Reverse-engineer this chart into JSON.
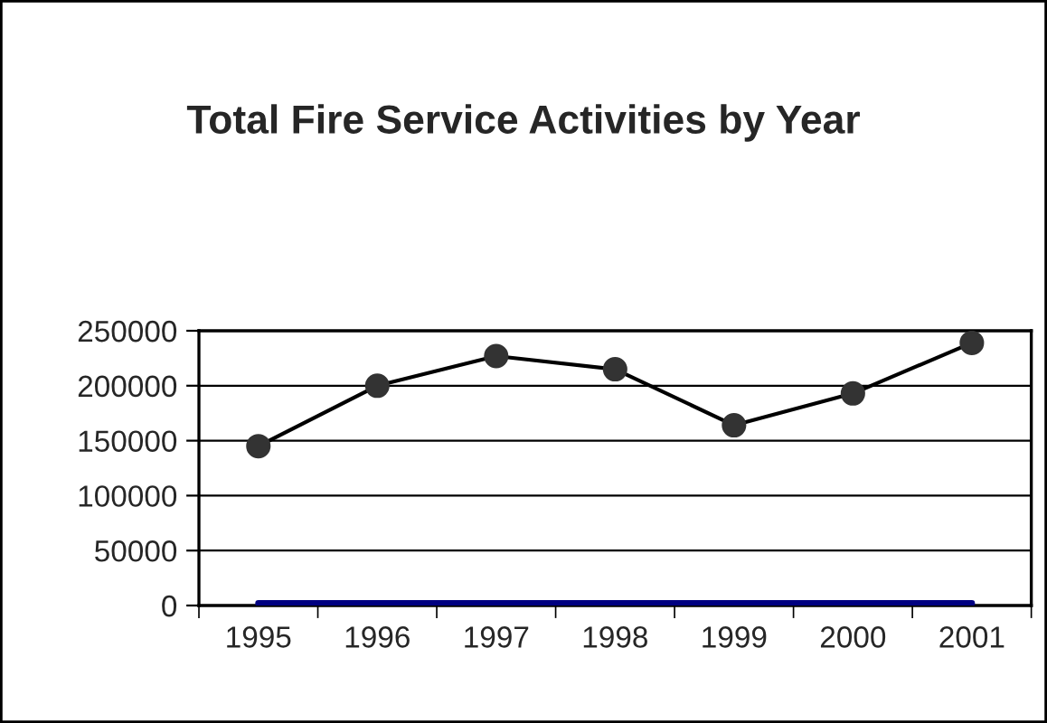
{
  "chart_data": {
    "type": "line",
    "title": "Total Fire Service Activities by Year",
    "categories": [
      "1995",
      "1996",
      "1997",
      "1998",
      "1999",
      "2000",
      "2001"
    ],
    "series": [
      {
        "color": "#000000",
        "values": [
          145000,
          200000,
          227000,
          215000,
          164000,
          193000,
          239000
        ],
        "marker": "circle"
      },
      {
        "color": "#000080",
        "values": [
          2000,
          2000,
          2000,
          2000,
          2000,
          2000,
          2000
        ],
        "marker": "none"
      }
    ],
    "ylim": [
      0,
      250000
    ],
    "yticks": [
      0,
      50000,
      100000,
      150000,
      200000,
      250000
    ],
    "grid": "y",
    "legend": false
  }
}
